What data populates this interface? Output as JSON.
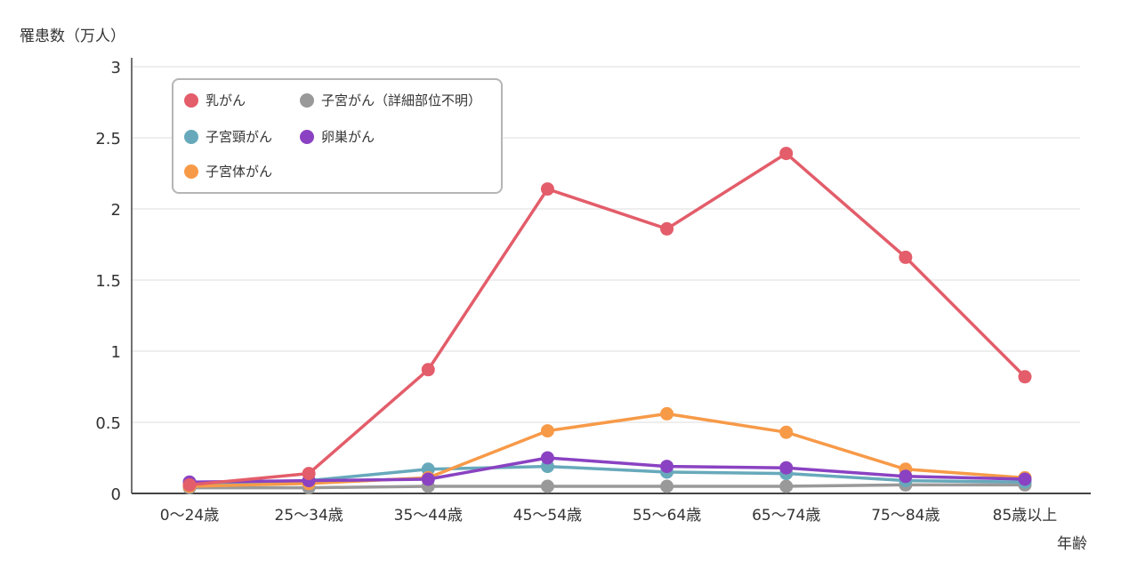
{
  "chart_data": {
    "type": "line",
    "ylabel": "罹患数（万人）",
    "xlabel": "年齢",
    "categories": [
      "0〜24歳",
      "25〜34歳",
      "35〜44歳",
      "45〜54歳",
      "55〜64歳",
      "65〜74歳",
      "75〜84歳",
      "85歳以上"
    ],
    "yticks": [
      "0",
      "0.5",
      "1",
      "1.5",
      "2",
      "2.5",
      "3"
    ],
    "ylim": [
      0,
      3
    ],
    "grid": true,
    "legend_position": "top-left",
    "series": [
      {
        "name": "乳がん",
        "color": "#e35d6a",
        "values": [
          0.06,
          0.14,
          0.87,
          2.14,
          1.86,
          2.39,
          1.66,
          0.82
        ]
      },
      {
        "name": "子宮がん（詳細部位不明）",
        "color": "#999999",
        "values": [
          0.04,
          0.04,
          0.05,
          0.05,
          0.05,
          0.05,
          0.06,
          0.06
        ]
      },
      {
        "name": "子宮頸がん",
        "color": "#67a9bb",
        "values": [
          0.05,
          0.09,
          0.17,
          0.19,
          0.15,
          0.14,
          0.09,
          0.08
        ]
      },
      {
        "name": "卵巣がん",
        "color": "#8a42c2",
        "values": [
          0.08,
          0.09,
          0.1,
          0.25,
          0.19,
          0.18,
          0.12,
          0.1
        ]
      },
      {
        "name": "子宮体がん",
        "color": "#f79a48",
        "values": [
          0.05,
          0.07,
          0.11,
          0.44,
          0.56,
          0.43,
          0.17,
          0.11
        ]
      }
    ]
  }
}
